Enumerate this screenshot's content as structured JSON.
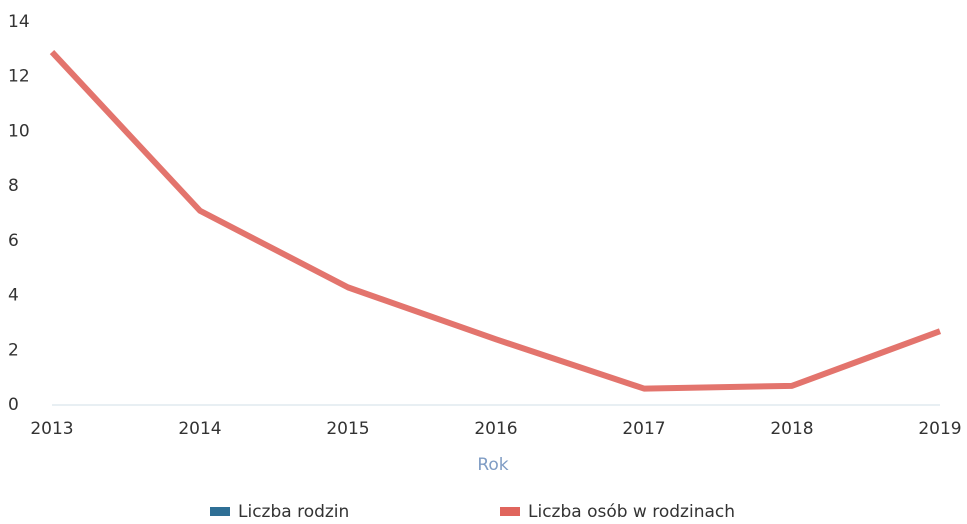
{
  "chart_data": {
    "type": "line",
    "x_label": "Rok",
    "categories": [
      "2013",
      "2014",
      "2015",
      "2016",
      "2017",
      "2018",
      "2019"
    ],
    "series": [
      {
        "name": "Liczba rodzin",
        "color": "#2f6f95",
        "values": [
          0,
          0,
          0,
          0,
          0,
          0,
          0
        ]
      },
      {
        "name": "Liczba osób w rodzinach",
        "color": "#e0655d",
        "values": [
          12.9,
          7.1,
          4.3,
          2.4,
          0.6,
          0.7,
          2.7
        ]
      }
    ],
    "ylim": [
      0,
      14
    ],
    "yticks": [
      0,
      2,
      4,
      6,
      8,
      10,
      12,
      14
    ],
    "legend": "bottom"
  }
}
